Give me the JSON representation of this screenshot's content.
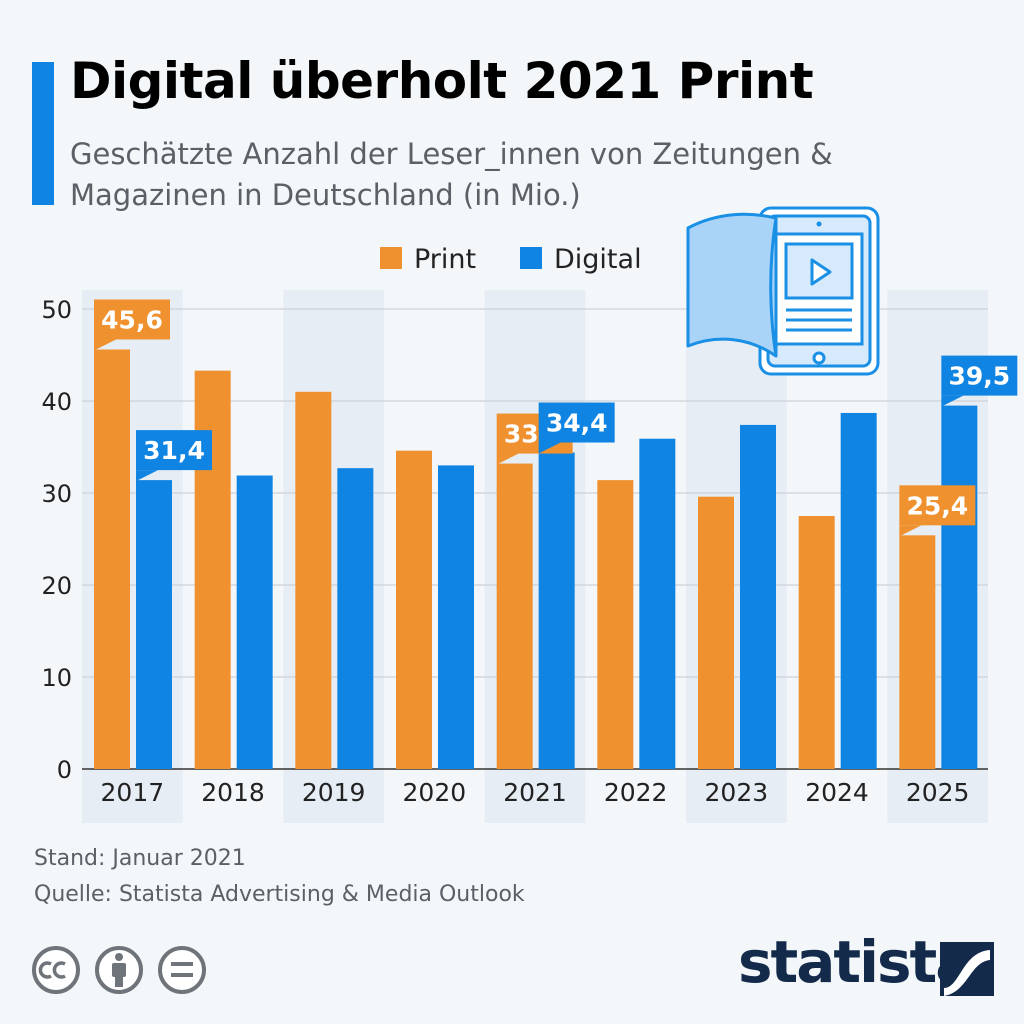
{
  "title": "Digital überholt 2021 Print",
  "subtitle": "Geschätzte Anzahl der Leser_innen von Zeitungen & Magazinen in Deutschland (in Mio.)",
  "footer": {
    "stand": "Stand: Januar 2021",
    "quelle": "Quelle: Statista Advertising & Media Outlook"
  },
  "brand": {
    "wordmark": "statista"
  },
  "license_icons": [
    "cc-icon",
    "attribution-icon",
    "no-derivatives-icon"
  ],
  "illustration": "book-tablet-icon",
  "colors": {
    "print": "#f0912f",
    "digital": "#0f84e3",
    "accent": "#0f84e3",
    "band": "#e7edf4",
    "grid": "#c4cad1",
    "text": "#222222",
    "brand": "#142a4a"
  },
  "chart_data": {
    "type": "bar",
    "title": "Digital überholt 2021 Print",
    "subtitle": "Geschätzte Anzahl der Leser_innen von Zeitungen & Magazinen in Deutschland (in Mio.)",
    "categories": [
      "2017",
      "2018",
      "2019",
      "2020",
      "2021",
      "2022",
      "2023",
      "2024",
      "2025"
    ],
    "series": [
      {
        "name": "Print",
        "color": "#f0912f",
        "values": [
          45.6,
          43.3,
          41.0,
          34.6,
          33.2,
          31.4,
          29.6,
          27.5,
          25.4
        ]
      },
      {
        "name": "Digital",
        "color": "#0f84e3",
        "values": [
          31.4,
          31.9,
          32.7,
          33.0,
          34.4,
          35.9,
          37.4,
          38.7,
          39.5
        ]
      }
    ],
    "ylim": [
      0,
      50
    ],
    "yticks": [
      0,
      10,
      20,
      30,
      40,
      50
    ],
    "grid": true,
    "legend": "top-center",
    "data_labels": [
      {
        "series": "Print",
        "category": "2017",
        "text": "45,6"
      },
      {
        "series": "Digital",
        "category": "2017",
        "text": "31,4"
      },
      {
        "series": "Print",
        "category": "2021",
        "text": "33,2"
      },
      {
        "series": "Digital",
        "category": "2021",
        "text": "34,4"
      },
      {
        "series": "Print",
        "category": "2025",
        "text": "25,4"
      },
      {
        "series": "Digital",
        "category": "2025",
        "text": "39,5"
      }
    ]
  }
}
